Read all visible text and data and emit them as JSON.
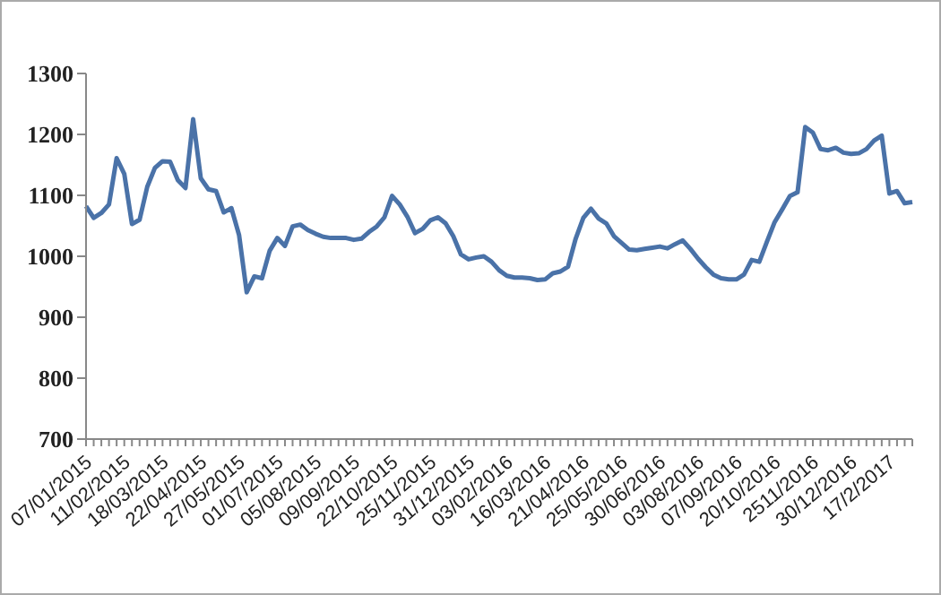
{
  "chart_data": {
    "type": "line",
    "color": "#4a72a8",
    "ylim": [
      700,
      1300
    ],
    "yticks": [
      700,
      800,
      900,
      1000,
      1100,
      1200,
      1300
    ],
    "categories": [
      "07/01/2015",
      null,
      null,
      null,
      null,
      "11/02/2015",
      null,
      null,
      null,
      null,
      "18/03/2015",
      null,
      null,
      null,
      null,
      "22/04/2015",
      null,
      null,
      null,
      null,
      "27/05/2015",
      null,
      null,
      null,
      null,
      "01/07/2015",
      null,
      null,
      null,
      null,
      "05/08/2015",
      null,
      null,
      null,
      null,
      "09/09/2015",
      null,
      null,
      null,
      null,
      "22/10/2015",
      null,
      null,
      null,
      null,
      "25/11/2015",
      null,
      null,
      null,
      null,
      "31/12/2015",
      null,
      null,
      null,
      null,
      "03/02/2016",
      null,
      null,
      null,
      null,
      "16/03/2016",
      null,
      null,
      null,
      null,
      "21/04/2016",
      null,
      null,
      null,
      null,
      "25/05/2016",
      null,
      null,
      null,
      null,
      "30/06/2016",
      null,
      null,
      null,
      null,
      "03/08/2016",
      null,
      null,
      null,
      null,
      "07/09/2016",
      null,
      null,
      null,
      null,
      "20/10/2016",
      null,
      null,
      null,
      null,
      "2511/2016",
      null,
      null,
      null,
      null,
      "30/12/2016",
      null,
      null,
      null,
      null,
      "17/2/2017",
      null,
      null,
      null
    ],
    "values": [
      1082,
      1063,
      1071,
      1085,
      1161,
      1135,
      1053,
      1060,
      1114,
      1145,
      1156,
      1155,
      1125,
      1112,
      1225,
      1128,
      1110,
      1107,
      1072,
      1079,
      1035,
      941,
      967,
      964,
      1009,
      1030,
      1017,
      1049,
      1052,
      1043,
      1037,
      1032,
      1030,
      1030,
      1030,
      1027,
      1029,
      1040,
      1049,
      1064,
      1099,
      1085,
      1065,
      1038,
      1045,
      1059,
      1064,
      1054,
      1033,
      1003,
      995,
      998,
      1000,
      991,
      977,
      968,
      965,
      965,
      964,
      961,
      962,
      972,
      975,
      983,
      1029,
      1063,
      1078,
      1062,
      1054,
      1033,
      1022,
      1011,
      1010,
      1012,
      1014,
      1016,
      1013,
      1020,
      1026,
      1012,
      996,
      982,
      970,
      964,
      962,
      962,
      970,
      994,
      991,
      1024,
      1056,
      1077,
      1099,
      1105,
      1212,
      1203,
      1176,
      1174,
      1178,
      1170,
      1168,
      1169,
      1176,
      1190,
      1198,
      1103,
      1107,
      1087,
      1089
    ]
  }
}
